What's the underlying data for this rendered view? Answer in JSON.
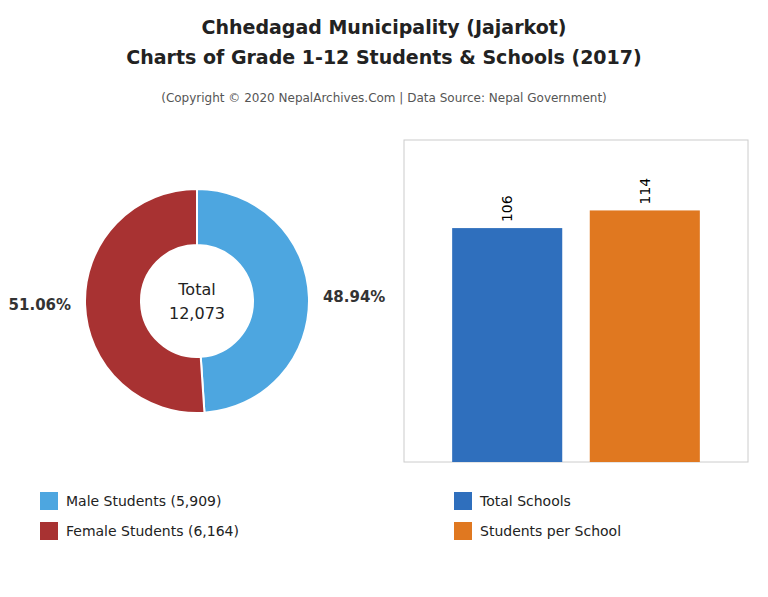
{
  "title": [
    "Chhedagad Municipality (Jajarkot)",
    "Charts of Grade 1-12 Students & Schools (2017)"
  ],
  "subtitle": "(Copyright © 2020 NepalArchives.Com | Data Source: Nepal Government)",
  "chart_data": [
    {
      "type": "pie",
      "categories": [
        "Male Students (5,909)",
        "Female Students (6,164)"
      ],
      "values": [
        48.94,
        51.06
      ],
      "value_labels": [
        "48.94%",
        "51.06%"
      ],
      "colors": [
        "#4da6e0",
        "#a83232"
      ],
      "annotations": [
        "Total",
        "12,073"
      ],
      "data_labels": true,
      "legend": "bottom"
    },
    {
      "type": "bar",
      "categories": [
        null
      ],
      "series": [
        {
          "name": "Total Schools",
          "color": "#2f6fbd",
          "values": [
            106
          ]
        },
        {
          "name": "Students per School",
          "color": "#e07820",
          "values": [
            114
          ]
        }
      ],
      "ylim": [
        0,
        145.92
      ],
      "tick_labels": false,
      "data_labels": true,
      "legend": "bottom"
    }
  ]
}
